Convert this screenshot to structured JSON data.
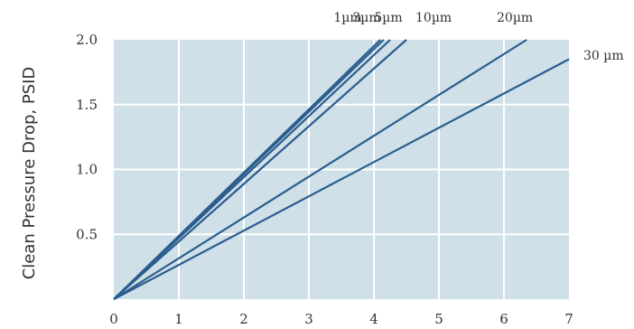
{
  "colors": {
    "plot_bg": "#cfe0e8",
    "grid": "#ffffff",
    "series": "#2b5d8e",
    "text": "#333333"
  },
  "chart_data": {
    "type": "line",
    "title": "",
    "xlabel": "",
    "ylabel": "Clean Pressure Drop, PSID",
    "xlim": [
      0,
      7
    ],
    "ylim": [
      0,
      2.0
    ],
    "x_ticks": [
      "0",
      "1",
      "2",
      "3",
      "4",
      "5",
      "6",
      "7"
    ],
    "y_ticks": [
      "0.5",
      "1.0",
      "1.5",
      "2.0"
    ],
    "grid": true,
    "series": [
      {
        "name": "1µm",
        "x": [
          0,
          4.1
        ],
        "y": [
          0,
          2.0
        ]
      },
      {
        "name": "3µm",
        "x": [
          0,
          4.15
        ],
        "y": [
          0,
          2.0
        ]
      },
      {
        "name": "5µm",
        "x": [
          0,
          4.25
        ],
        "y": [
          0,
          2.0
        ]
      },
      {
        "name": "10µm",
        "x": [
          0,
          4.5
        ],
        "y": [
          0,
          2.0
        ]
      },
      {
        "name": "20µm",
        "x": [
          0,
          6.35
        ],
        "y": [
          0,
          2.0
        ]
      },
      {
        "name": "30 µm",
        "x": [
          0,
          7.0
        ],
        "y": [
          0,
          1.85
        ]
      }
    ]
  }
}
